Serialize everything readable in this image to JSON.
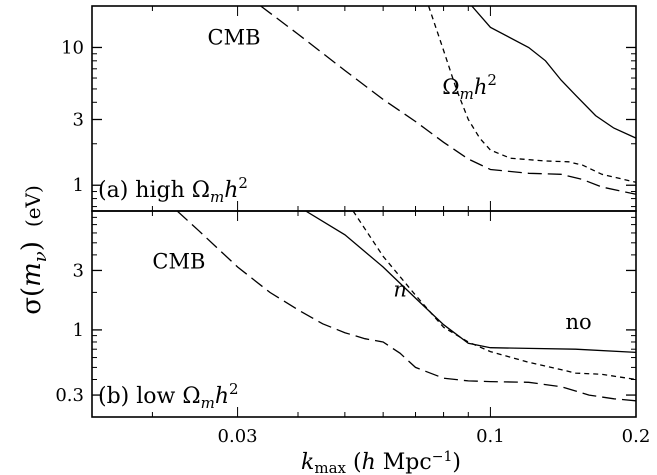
{
  "chart_data": [
    {
      "type": "line",
      "panel": "top",
      "panel_label": [
        "(a) high Ω",
        "m",
        "h",
        "2"
      ],
      "xscale": "log",
      "yscale": "log",
      "xlim": [
        0.015,
        0.2
      ],
      "ylim": [
        0.65,
        20
      ],
      "yticks": [
        1,
        3,
        10
      ],
      "ytick_labels": [
        "1",
        "3",
        "10"
      ],
      "series": [
        {
          "name": "CMB",
          "dash": "long",
          "x": [
            0.0335,
            0.04,
            0.05,
            0.06,
            0.07,
            0.08,
            0.09,
            0.1,
            0.12,
            0.14,
            0.155,
            0.17,
            0.2
          ],
          "y": [
            20,
            12.5,
            6.8,
            4.2,
            2.9,
            2.05,
            1.55,
            1.3,
            1.22,
            1.2,
            1.1,
            0.97,
            0.86
          ]
        },
        {
          "name": "Ωmh2",
          "dash": "short",
          "x": [
            0.0745,
            0.08,
            0.085,
            0.09,
            0.095,
            0.1,
            0.11,
            0.13,
            0.145,
            0.155,
            0.17,
            0.2
          ],
          "y": [
            20,
            9.5,
            5,
            3,
            2.2,
            1.8,
            1.57,
            1.5,
            1.48,
            1.4,
            1.2,
            1.05
          ]
        },
        {
          "name": "",
          "dash": "solid",
          "x": [
            0.0915,
            0.1,
            0.12,
            0.13,
            0.14,
            0.15,
            0.165,
            0.18,
            0.2
          ],
          "y": [
            20,
            14,
            10,
            8,
            5.8,
            4.5,
            3.2,
            2.6,
            2.2
          ]
        }
      ],
      "annotations": [
        {
          "parts": [
            "CMB"
          ],
          "x": 0.026,
          "y": 10.5
        },
        {
          "parts": [
            "Ω",
            "m",
            "h",
            "2"
          ],
          "x": 0.0795,
          "y": 4.6
        }
      ]
    },
    {
      "type": "line",
      "panel": "bottom",
      "panel_label": [
        "(b) low Ω",
        "m",
        "h",
        "2"
      ],
      "xscale": "log",
      "yscale": "log",
      "xlim": [
        0.015,
        0.2
      ],
      "ylim": [
        0.2,
        9
      ],
      "yticks": [
        0.3,
        1,
        3
      ],
      "ytick_labels": [
        "0.3",
        "1",
        "3"
      ],
      "xticks": [
        0.03,
        0.1,
        0.2
      ],
      "xtick_labels": [
        "0.03",
        "0.1",
        "0.2"
      ],
      "series": [
        {
          "name": "CMB",
          "dash": "long",
          "x": [
            0.0225,
            0.025,
            0.03,
            0.035,
            0.04,
            0.045,
            0.05,
            0.055,
            0.06,
            0.065,
            0.07,
            0.08,
            0.09,
            0.1,
            0.12,
            0.14,
            0.16,
            0.18,
            0.2
          ],
          "y": [
            9,
            6.2,
            3.2,
            2,
            1.45,
            1.12,
            0.95,
            0.85,
            0.8,
            0.65,
            0.5,
            0.41,
            0.39,
            0.385,
            0.38,
            0.35,
            0.3,
            0.28,
            0.27
          ]
        },
        {
          "name": "n",
          "dash": "short",
          "x": [
            0.052,
            0.06,
            0.07,
            0.08,
            0.09,
            0.1,
            0.12,
            0.14,
            0.15,
            0.17,
            0.2
          ],
          "y": [
            9,
            3.9,
            1.9,
            1.05,
            0.8,
            0.67,
            0.55,
            0.48,
            0.45,
            0.44,
            0.4
          ]
        },
        {
          "name": "no",
          "dash": "solid",
          "x": [
            0.0415,
            0.05,
            0.06,
            0.07,
            0.08,
            0.09,
            0.1,
            0.12,
            0.15,
            0.2
          ],
          "y": [
            9,
            5.8,
            3.2,
            1.8,
            1.1,
            0.78,
            0.72,
            0.71,
            0.7,
            0.66
          ]
        }
      ],
      "annotations": [
        {
          "parts": [
            "CMB"
          ],
          "x": 0.02,
          "y": 3.1
        },
        {
          "parts": [
            "n"
          ],
          "x": 0.063,
          "y": 1.85
        },
        {
          "parts": [
            "no"
          ],
          "x": 0.143,
          "y": 1.02
        }
      ]
    }
  ],
  "y_axis_title": [
    "σ(",
    "m",
    "ν",
    ")",
    "(eV)"
  ],
  "x_axis_title": [
    "k",
    "max",
    " (",
    "h",
    " Mpc",
    "−1",
    ")"
  ]
}
